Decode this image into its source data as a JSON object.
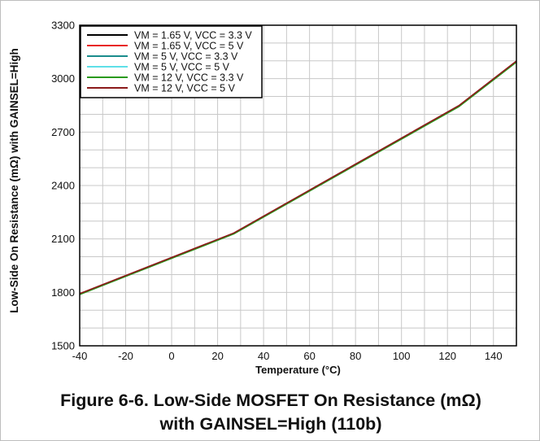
{
  "chart_data": {
    "type": "line",
    "title": "",
    "xlabel": "Temperature (°C)",
    "ylabel": "Low-Side On Resistance (mΩ) with GAINSEL=High",
    "xlim": [
      -40,
      150
    ],
    "ylim": [
      1500,
      3300
    ],
    "xticks": [
      -40,
      -20,
      0,
      20,
      40,
      60,
      80,
      100,
      120,
      140
    ],
    "yticks": [
      1500,
      1800,
      2100,
      2400,
      2700,
      3000,
      3300
    ],
    "x_minor_step": 10,
    "y_minor_step": 100,
    "grid": true,
    "legend_position": "top-left",
    "series": [
      {
        "name": "VM = 1.65 V, VCC = 3.3 V",
        "color": "#000000",
        "x": [
          -40,
          27,
          125,
          150
        ],
        "y": [
          1790,
          2130,
          2845,
          3095
        ]
      },
      {
        "name": "VM = 1.65 V, VCC = 5 V",
        "color": "#e8251f",
        "x": [
          -40,
          27,
          125,
          150
        ],
        "y": [
          1792,
          2132,
          2848,
          3098
        ]
      },
      {
        "name": "VM = 5 V, VCC = 3.3 V",
        "color": "#1a8c8c",
        "x": [
          -40,
          27,
          125,
          150
        ],
        "y": [
          1789,
          2129,
          2844,
          3094
        ]
      },
      {
        "name": "VM = 5 V, VCC = 5 V",
        "color": "#5ee0e8",
        "x": [
          -40,
          27,
          125,
          150
        ],
        "y": [
          1791,
          2131,
          2846,
          3096
        ]
      },
      {
        "name": "VM = 12 V, VCC = 3.3 V",
        "color": "#2a9a1c",
        "x": [
          -40,
          27,
          125,
          150
        ],
        "y": [
          1788,
          2128,
          2843,
          3093
        ]
      },
      {
        "name": "VM = 12 V, VCC = 5 V",
        "color": "#8b1a1a",
        "x": [
          -40,
          27,
          125,
          150
        ],
        "y": [
          1793,
          2133,
          2849,
          3099
        ]
      }
    ]
  },
  "caption": {
    "line1": "Figure 6-6. Low-Side MOSFET On Resistance (mΩ)",
    "line2": "with GAINSEL=High (110b)"
  }
}
